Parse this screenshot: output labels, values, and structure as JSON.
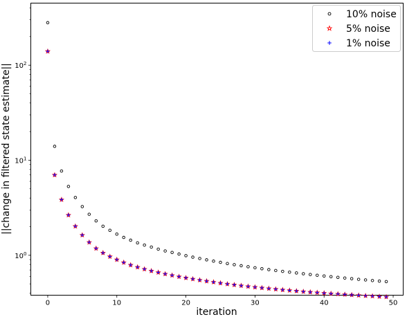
{
  "chart_data": {
    "type": "scatter",
    "title": "",
    "xlabel": "iteration",
    "ylabel": "||change in filtered state estimate||",
    "x_scale": "linear",
    "y_scale": "log",
    "xlim": [
      -2.45,
      51.45
    ],
    "ylim": [
      0.38,
      450
    ],
    "x_ticks": [
      0,
      10,
      20,
      30,
      40,
      50
    ],
    "y_ticks": [
      {
        "value": 1,
        "base": "10",
        "exp": "0"
      },
      {
        "value": 10,
        "base": "10",
        "exp": "1"
      },
      {
        "value": 100,
        "base": "10",
        "exp": "2"
      }
    ],
    "grid": false,
    "legend_position": "top-right",
    "x": [
      0,
      1,
      2,
      3,
      4,
      5,
      6,
      7,
      8,
      9,
      10,
      11,
      12,
      13,
      14,
      15,
      16,
      17,
      18,
      19,
      20,
      21,
      22,
      23,
      24,
      25,
      26,
      27,
      28,
      29,
      30,
      31,
      32,
      33,
      34,
      35,
      36,
      37,
      38,
      39,
      40,
      41,
      42,
      43,
      44,
      45,
      46,
      47,
      48,
      49
    ],
    "series": [
      {
        "name": "10% noise",
        "marker": "circle",
        "color": "#000000",
        "values": [
          280,
          14,
          7.7,
          5.3,
          4.05,
          3.25,
          2.7,
          2.3,
          2.02,
          1.83,
          1.67,
          1.54,
          1.44,
          1.35,
          1.28,
          1.22,
          1.16,
          1.11,
          1.07,
          1.03,
          0.99,
          0.955,
          0.925,
          0.895,
          0.867,
          0.842,
          0.818,
          0.796,
          0.776,
          0.757,
          0.739,
          0.722,
          0.706,
          0.691,
          0.677,
          0.664,
          0.651,
          0.639,
          0.627,
          0.616,
          0.605,
          0.595,
          0.585,
          0.576,
          0.567,
          0.558,
          0.55,
          0.542,
          0.535,
          0.528
        ]
      },
      {
        "name": "5% noise",
        "marker": "star",
        "color": "#ff0000",
        "values": [
          140,
          7,
          3.85,
          2.65,
          2.02,
          1.63,
          1.37,
          1.18,
          1.06,
          0.97,
          0.9,
          0.84,
          0.79,
          0.75,
          0.715,
          0.685,
          0.66,
          0.636,
          0.615,
          0.596,
          0.579,
          0.563,
          0.548,
          0.535,
          0.522,
          0.51,
          0.499,
          0.489,
          0.479,
          0.47,
          0.462,
          0.454,
          0.447,
          0.44,
          0.433,
          0.427,
          0.421,
          0.415,
          0.41,
          0.405,
          0.4,
          0.395,
          0.391,
          0.387,
          0.383,
          0.379,
          0.375,
          0.372,
          0.368,
          0.365
        ]
      },
      {
        "name": "1% noise",
        "marker": "plus",
        "color": "#0000ff",
        "values": [
          140,
          7,
          3.85,
          2.65,
          2.02,
          1.63,
          1.37,
          1.18,
          1.06,
          0.97,
          0.9,
          0.84,
          0.79,
          0.75,
          0.715,
          0.685,
          0.66,
          0.636,
          0.615,
          0.596,
          0.579,
          0.563,
          0.548,
          0.535,
          0.522,
          0.51,
          0.499,
          0.489,
          0.479,
          0.47,
          0.462,
          0.454,
          0.447,
          0.44,
          0.433,
          0.427,
          0.421,
          0.415,
          0.41,
          0.405,
          0.4,
          0.395,
          0.391,
          0.387,
          0.383,
          0.379,
          0.375,
          0.372,
          0.368,
          0.365
        ]
      }
    ]
  }
}
